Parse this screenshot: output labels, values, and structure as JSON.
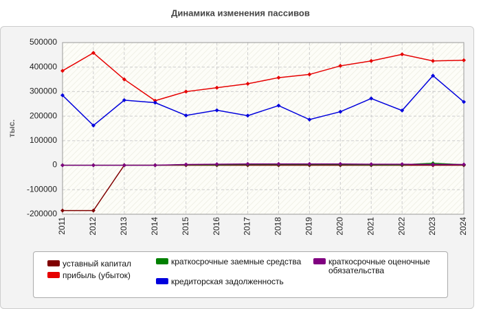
{
  "chart_data": {
    "type": "line",
    "title": "Динамика изменения пассивов",
    "y_label": "тыс.",
    "x": [
      2011,
      2012,
      2013,
      2014,
      2015,
      2016,
      2017,
      2018,
      2019,
      2020,
      2021,
      2022,
      2023,
      2024
    ],
    "xlim": [
      2011,
      2024
    ],
    "xticks": [
      2011,
      2012,
      2013,
      2014,
      2015,
      2016,
      2017,
      2018,
      2019,
      2020,
      2021,
      2022,
      2023,
      2024
    ],
    "ylim": [
      -200000,
      500000
    ],
    "yticks": [
      -200000,
      -100000,
      0,
      100000,
      200000,
      300000,
      400000,
      500000
    ],
    "grid": true,
    "series": [
      {
        "name": "уставный капитал",
        "color": "#800000",
        "values": [
          -185000,
          -185000,
          0,
          0,
          0,
          0,
          0,
          0,
          0,
          0,
          0,
          0,
          0,
          0
        ]
      },
      {
        "name": "прибыль (убыток)",
        "color": "#e60000",
        "values": [
          385000,
          458000,
          350000,
          263000,
          300000,
          316000,
          332000,
          357000,
          370000,
          405000,
          425000,
          452000,
          425000,
          428000
        ]
      },
      {
        "name": "краткосрочные заемные средства",
        "color": "#008000",
        "values": [
          0,
          0,
          0,
          0,
          2000,
          2000,
          3000,
          3000,
          3000,
          3000,
          2000,
          2000,
          8000,
          2000
        ]
      },
      {
        "name": "кредиторская задолженность",
        "color": "#0000dd",
        "values": [
          285000,
          162000,
          265000,
          255000,
          203000,
          224000,
          202000,
          243000,
          186000,
          218000,
          272000,
          223000,
          365000,
          258000
        ]
      },
      {
        "name": "краткосрочные оценочные обязательства",
        "color": "#800080",
        "values": [
          0,
          0,
          0,
          0,
          3000,
          4000,
          5000,
          5000,
          5000,
          5000,
          4000,
          4000,
          3000,
          3000
        ]
      }
    ]
  }
}
